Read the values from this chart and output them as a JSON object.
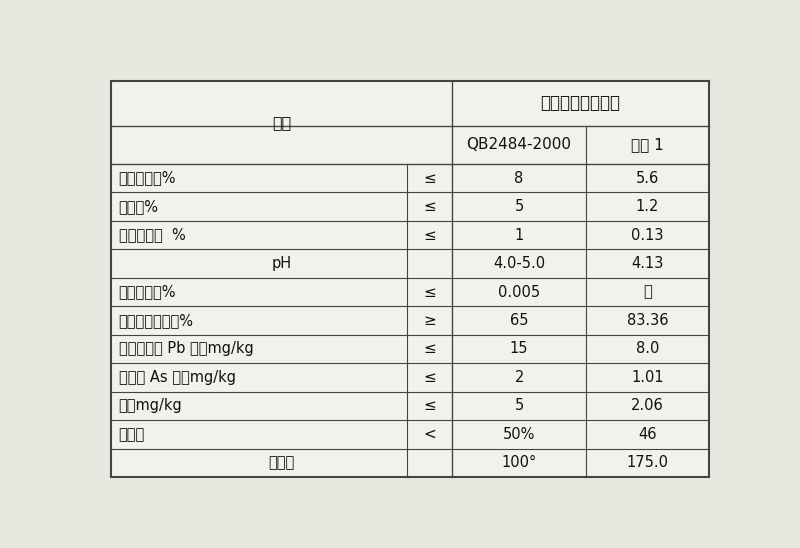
{
  "title_main": "低甲氧基果胶指标",
  "col_header_1": "项目",
  "col_header_2": "QB2484-2000",
  "col_header_3": "实例 1",
  "rows": [
    [
      "干燥失重，%",
      "≤",
      "8",
      "5.6"
    ],
    [
      "灰分，%",
      "≤",
      "5",
      "1.2"
    ],
    [
      "盐酸不溶物  %",
      "≤",
      "1",
      "0.13"
    ],
    [
      "pH",
      "",
      "4.0-5.0",
      "4.13"
    ],
    [
      "二氧化硫，%",
      "≤",
      "0.005",
      "无"
    ],
    [
      "总半乳糖醛酸，%",
      "≥",
      "65",
      "83.36"
    ],
    [
      "重金属（以 Pb 计）mg/kg",
      "≤",
      "15",
      "8.0"
    ],
    [
      "砷（以 As 汁）mg/kg",
      "≤",
      "2",
      "1.01"
    ],
    [
      "铅，mg/kg",
      "≤",
      "5",
      "2.06"
    ],
    [
      "酯化度",
      "<",
      "50%",
      "46"
    ],
    [
      "胶凝度",
      "",
      "100°",
      "175.0"
    ]
  ],
  "bg_color": "#e8e8e0",
  "cell_color": "#f2f2ec",
  "line_color": "#444444",
  "text_color": "#111111",
  "font_size": 10.5,
  "header_font_size": 11.5
}
